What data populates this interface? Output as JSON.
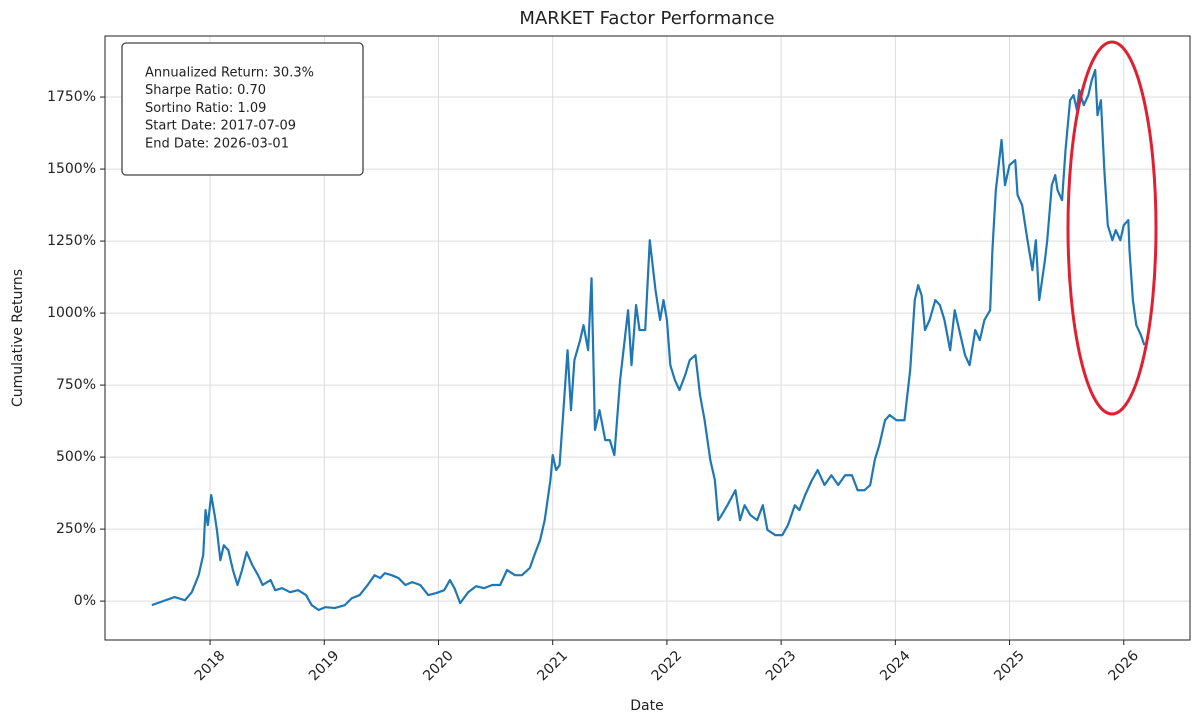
{
  "chart_data": {
    "type": "line",
    "title": "MARKET Factor Performance",
    "xlabel": "Date",
    "ylabel": "Cumulative Returns",
    "annotation": [
      "Annualized Return: 30.3%",
      "Sharpe Ratio: 0.70",
      "Sortino Ratio: 1.09",
      "Start Date: 2017-07-09",
      "End Date: 2026-03-01"
    ],
    "color": "#1f77b4",
    "grid": true,
    "xlim": [
      2017.08,
      2026.58
    ],
    "ylim": [
      -135,
      1962
    ],
    "xticks": [
      2018,
      2019,
      2020,
      2021,
      2022,
      2023,
      2024,
      2025,
      2026
    ],
    "yticks": [
      {
        "value": 0,
        "label": "0%"
      },
      {
        "value": 250,
        "label": "250%"
      },
      {
        "value": 500,
        "label": "500%"
      },
      {
        "value": 750,
        "label": "750%"
      },
      {
        "value": 1000,
        "label": "1000%"
      },
      {
        "value": 1250,
        "label": "1250%"
      },
      {
        "value": 1500,
        "label": "1500%"
      },
      {
        "value": 1750,
        "label": "1750%"
      }
    ],
    "x": [
      2017.49,
      2017.61,
      2017.69,
      2017.78,
      2017.84,
      2017.9,
      2017.94,
      2017.96,
      2017.98,
      2018.01,
      2018.04,
      2018.06,
      2018.09,
      2018.12,
      2018.16,
      2018.2,
      2018.24,
      2018.28,
      2018.32,
      2018.37,
      2018.42,
      2018.46,
      2018.53,
      2018.57,
      2018.63,
      2018.7,
      2018.77,
      2018.84,
      2018.89,
      2018.95,
      2019.01,
      2019.09,
      2019.18,
      2019.24,
      2019.31,
      2019.38,
      2019.44,
      2019.49,
      2019.53,
      2019.59,
      2019.65,
      2019.71,
      2019.77,
      2019.84,
      2019.91,
      2019.98,
      2020.05,
      2020.1,
      2020.14,
      2020.19,
      2020.26,
      2020.33,
      2020.4,
      2020.47,
      2020.54,
      2020.6,
      2020.67,
      2020.73,
      2020.8,
      2020.84,
      2020.89,
      2020.93,
      2020.98,
      2021.0,
      2021.03,
      2021.06,
      2021.1,
      2021.13,
      2021.16,
      2021.19,
      2021.24,
      2021.27,
      2021.31,
      2021.34,
      2021.37,
      2021.41,
      2021.46,
      2021.5,
      2021.54,
      2021.59,
      2021.63,
      2021.66,
      2021.69,
      2021.73,
      2021.76,
      2021.81,
      2021.85,
      2021.9,
      2021.94,
      2021.97,
      2022.0,
      2022.03,
      2022.07,
      2022.11,
      2022.16,
      2022.2,
      2022.25,
      2022.29,
      2022.33,
      2022.38,
      2022.42,
      2022.45,
      2022.48,
      2022.53,
      2022.6,
      2022.64,
      2022.68,
      2022.73,
      2022.79,
      2022.84,
      2022.88,
      2022.95,
      2023.01,
      2023.06,
      2023.12,
      2023.16,
      2023.21,
      2023.27,
      2023.32,
      2023.38,
      2023.44,
      2023.5,
      2023.56,
      2023.62,
      2023.67,
      2023.73,
      2023.78,
      2023.82,
      2023.86,
      2023.91,
      2023.95,
      2024.01,
      2024.08,
      2024.13,
      2024.17,
      2024.2,
      2024.23,
      2024.26,
      2024.3,
      2024.35,
      2024.39,
      2024.43,
      2024.48,
      2024.52,
      2024.56,
      2024.61,
      2024.65,
      2024.7,
      2024.74,
      2024.78,
      2024.83,
      2024.85,
      2024.88,
      2024.91,
      2024.93,
      2024.96,
      2025.0,
      2025.05,
      2025.07,
      2025.11,
      2025.15,
      2025.2,
      2025.23,
      2025.26,
      2025.31,
      2025.33,
      2025.37,
      2025.4,
      2025.42,
      2025.46,
      2025.49,
      2025.53,
      2025.56,
      2025.59,
      2025.61,
      2025.65,
      2025.69,
      2025.72,
      2025.75,
      2025.77,
      2025.8,
      2025.83,
      2025.86,
      2025.9,
      2025.93,
      2025.97,
      2026.0,
      2026.04,
      2026.05,
      2026.08,
      2026.11,
      2026.15,
      2026.18
    ],
    "values": [
      -14,
      3,
      14,
      3,
      31,
      90,
      160,
      316,
      264,
      368,
      299,
      247,
      142,
      194,
      177,
      108,
      56,
      108,
      170,
      125,
      90,
      56,
      73,
      38,
      45,
      31,
      38,
      21,
      -14,
      -31,
      -21,
      -24,
      -14,
      10,
      21,
      56,
      90,
      80,
      97,
      90,
      80,
      56,
      66,
      56,
      21,
      28,
      38,
      73,
      45,
      -7,
      31,
      52,
      45,
      56,
      56,
      108,
      90,
      90,
      115,
      160,
      212,
      281,
      420,
      507,
      455,
      472,
      698,
      871,
      663,
      837,
      906,
      958,
      871,
      1121,
      594,
      663,
      559,
      559,
      507,
      767,
      906,
      1010,
      819,
      1028,
      941,
      941,
      1253,
      1080,
      976,
      1045,
      976,
      819,
      767,
      733,
      785,
      837,
      854,
      715,
      628,
      490,
      420,
      281,
      299,
      333,
      385,
      281,
      333,
      299,
      281,
      333,
      247,
      229,
      229,
      264,
      333,
      316,
      368,
      420,
      455,
      403,
      437,
      403,
      437,
      437,
      385,
      385,
      403,
      490,
      542,
      628,
      646,
      628,
      628,
      802,
      1045,
      1097,
      1062,
      941,
      976,
      1045,
      1028,
      976,
      871,
      1010,
      941,
      854,
      819,
      941,
      906,
      976,
      1010,
      1219,
      1427,
      1531,
      1601,
      1444,
      1514,
      1531,
      1410,
      1375,
      1271,
      1149,
      1253,
      1045,
      1184,
      1253,
      1444,
      1479,
      1427,
      1392,
      1566,
      1739,
      1757,
      1705,
      1774,
      1722,
      1757,
      1809,
      1844,
      1687,
      1739,
      1496,
      1305,
      1253,
      1288,
      1253,
      1305,
      1323,
      1219,
      1045,
      958,
      924,
      889
    ]
  }
}
